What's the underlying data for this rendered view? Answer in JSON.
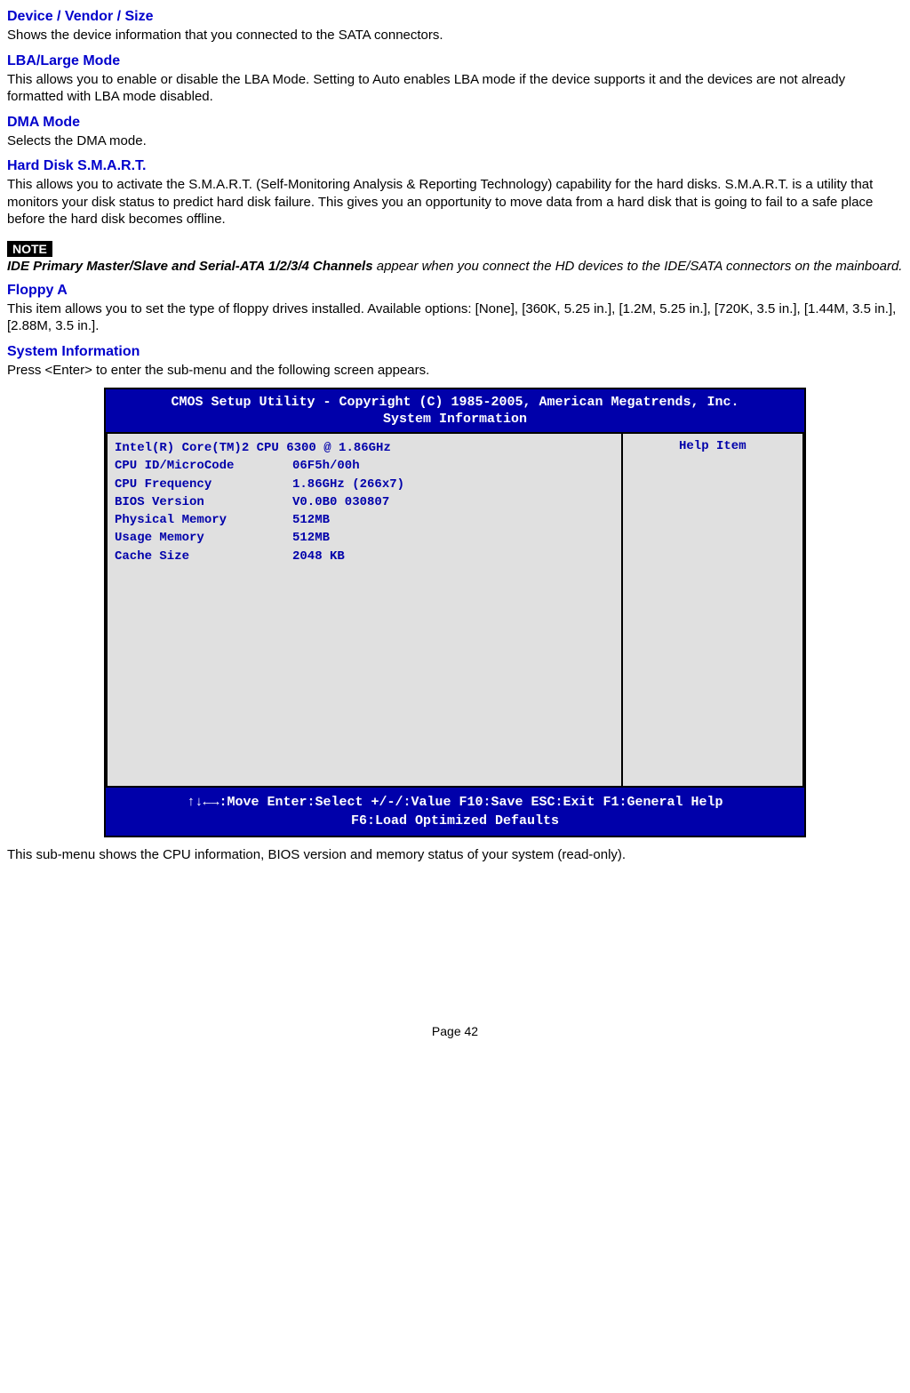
{
  "sections": {
    "s1": {
      "heading": "Device / Vendor / Size",
      "body": "Shows the device information that you connected to the SATA connectors."
    },
    "s2": {
      "heading": "LBA/Large Mode",
      "body": "This allows you to enable or disable the LBA Mode. Setting to Auto enables LBA mode if the device supports it and the devices are not already formatted with LBA mode disabled."
    },
    "s3": {
      "heading": "DMA Mode",
      "body": "Selects the DMA mode."
    },
    "s4": {
      "heading": "Hard Disk S.M.A.R.T.",
      "body": "This allows you to activate the S.M.A.R.T. (Self-Monitoring Analysis & Reporting Technology) capability for the hard disks. S.M.A.R.T. is a utility that monitors your disk status to predict hard disk failure. This gives you an opportunity to move data from a hard disk that is going to fail to a safe place before the hard disk becomes offline."
    },
    "s5": {
      "heading": "Floppy A",
      "body": "This item allows you to set the type of floppy drives installed. Available options: [None], [360K, 5.25 in.], [1.2M, 5.25 in.], [720K, 3.5 in.], [1.44M, 3.5 in.], [2.88M, 3.5 in.]."
    },
    "s6": {
      "heading": "System Information",
      "body": "Press <Enter> to enter the sub-menu and the following screen appears."
    }
  },
  "note": {
    "badge": "NOTE",
    "bold": "IDE Primary Master/Slave and Serial-ATA 1/2/3/4 Channels",
    "rest": " appear when you connect the HD devices to the IDE/SATA connectors on the mainboard."
  },
  "bios": {
    "title": "CMOS Setup Utility - Copyright (C) 1985-2005, American Megatrends, Inc.",
    "subtitle": "System Information",
    "help_header": "Help Item",
    "cpu_line": "Intel(R) Core(TM)2 CPU          6300  @ 1.86GHz",
    "rows": [
      {
        "label": "CPU ID/MicroCode",
        "value": "06F5h/00h"
      },
      {
        "label": "CPU Frequency",
        "value": "1.86GHz (266x7)"
      },
      {
        "label": "BIOS Version",
        "value": "V0.0B0 030807"
      },
      {
        "label": "Physical Memory",
        "value": "512MB"
      },
      {
        "label": "Usage Memory",
        "value": "512MB"
      },
      {
        "label": "Cache Size",
        "value": "2048 KB"
      }
    ],
    "footer1": "↑↓←→:Move  Enter:Select  +/-/:Value  F10:Save  ESC:Exit  F1:General Help",
    "footer2": "F6:Load Optimized Defaults",
    "colors": {
      "bg": "#0000aa",
      "panel_bg": "#e0e0e0",
      "text_blue": "#0000aa",
      "text_white": "#ffffff"
    }
  },
  "closing": "This sub-menu shows the CPU information, BIOS version and memory status of your system (read-only).",
  "page": "Page 42"
}
